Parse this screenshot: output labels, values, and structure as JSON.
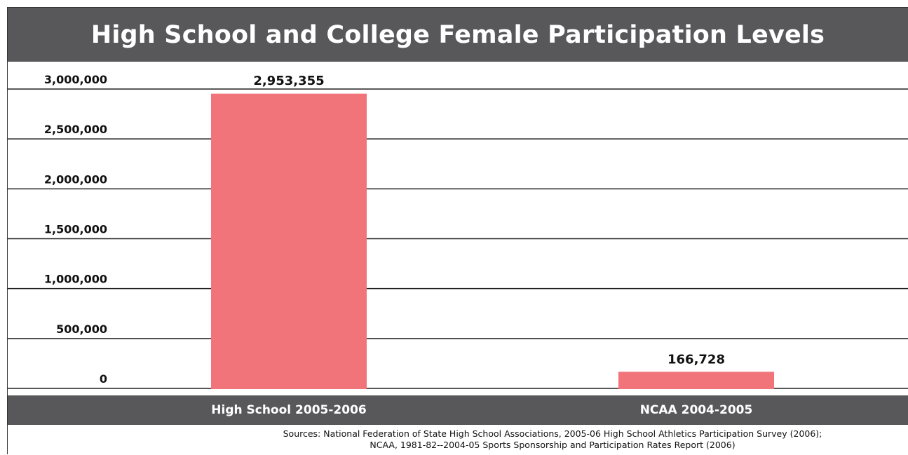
{
  "chart_data": {
    "type": "bar",
    "title": "High School and College Female Participation Levels",
    "categories": [
      "High School 2005-2006",
      "NCAA 2004-2005"
    ],
    "values": [
      2953355,
      166728
    ],
    "data_labels": [
      "2,953,355",
      "166,728"
    ],
    "ylim": [
      0,
      3000000
    ],
    "y_ticks": [
      {
        "value": 0,
        "label": "0"
      },
      {
        "value": 500000,
        "label": "500,000"
      },
      {
        "value": 1000000,
        "label": "1,000,000"
      },
      {
        "value": 1500000,
        "label": "1,500,000"
      },
      {
        "value": 2000000,
        "label": "2,000,000"
      },
      {
        "value": 2500000,
        "label": "2,500,000"
      },
      {
        "value": 3000000,
        "label": "3,000,000"
      }
    ],
    "grid": true,
    "bar_color": "#f07479"
  },
  "sources": [
    "Sources: National Federation of State High School Associations, 2005-06 High School Athletics Participation Survey (2006);",
    "NCAA, 1981-82--2004-05 Sports Sponsorship and Participation Rates Report (2006)"
  ],
  "colors": {
    "header_bg": "#58585a",
    "header_text": "#ffffff",
    "gridline": "#222222"
  }
}
